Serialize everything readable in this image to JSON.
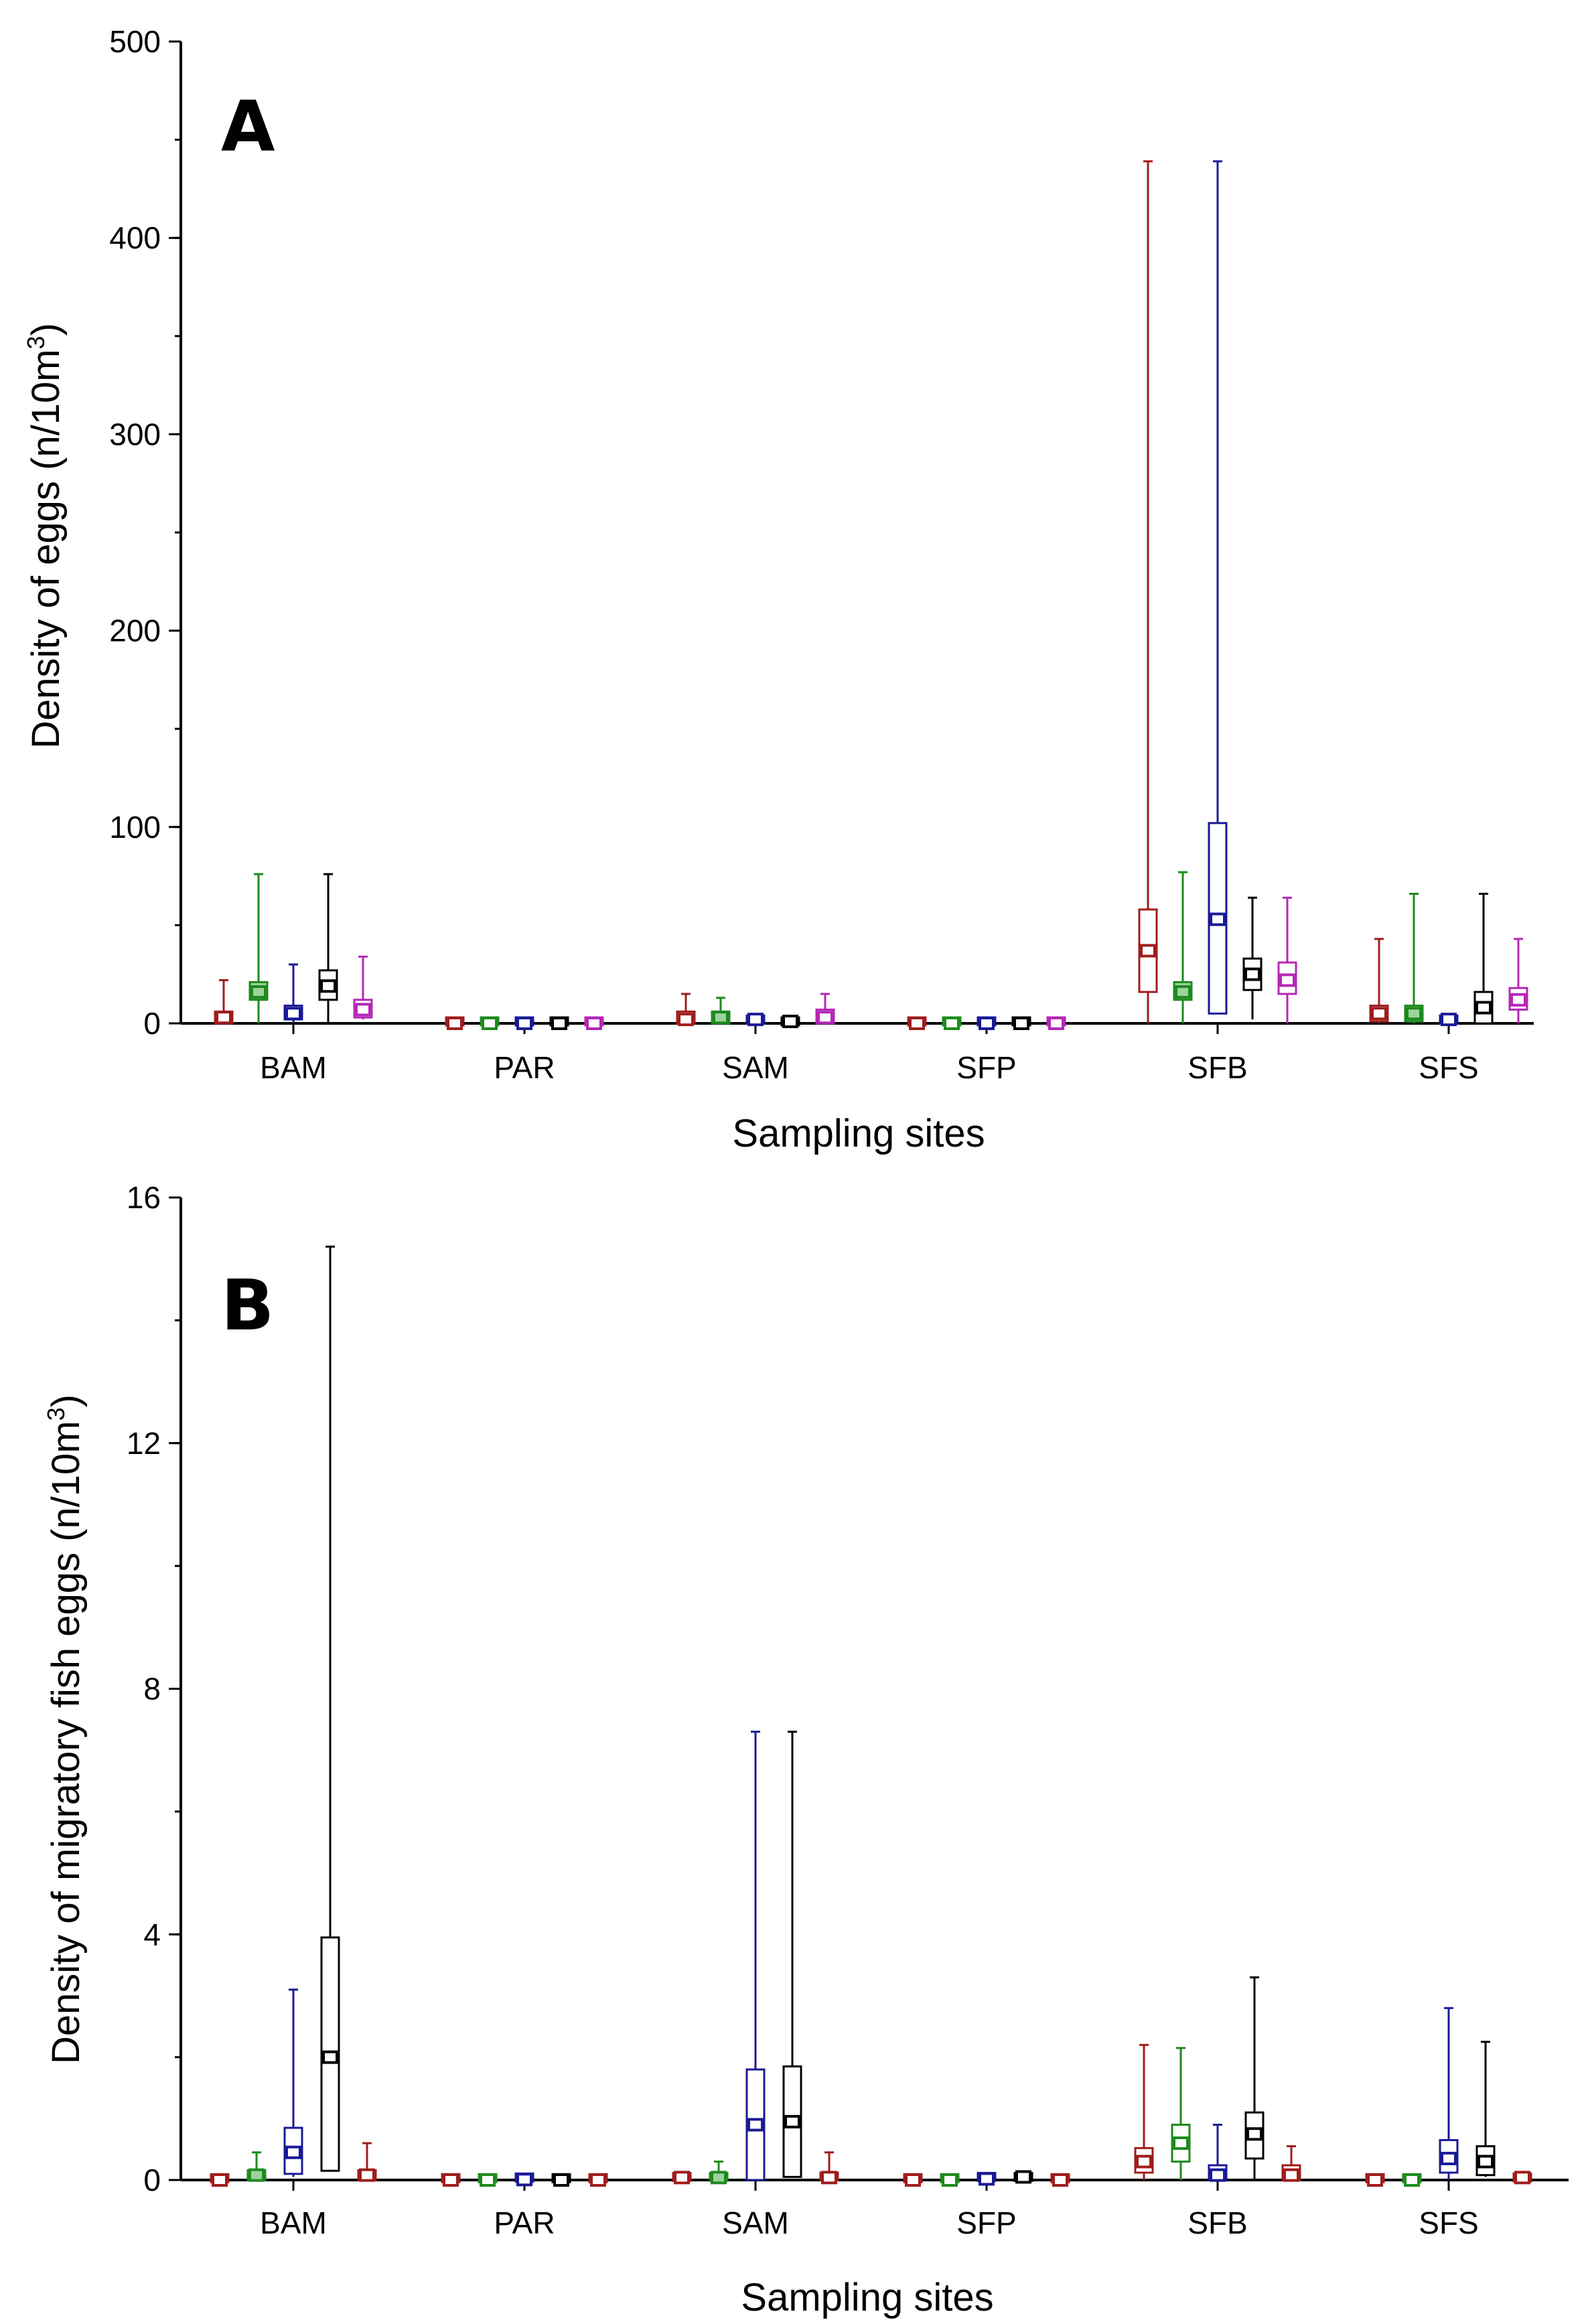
{
  "figure": {
    "panel_letters": [
      "A",
      "B"
    ]
  },
  "colors": {
    "red": "#a01c1c",
    "green": "#1e8a1e",
    "blue": "#1a1a96",
    "black": "#000000",
    "magenta": "#b528b5",
    "light_green_fill": "#9dd39d"
  },
  "chart_data": [
    {
      "type": "box",
      "panel": "A",
      "title": "",
      "xlabel": "Sampling sites",
      "ylabel_main": "Density of eggs (n/10m",
      "ylabel_sup": "3",
      "ylabel_end": ")",
      "ylim": [
        0,
        500
      ],
      "yticks": [
        0,
        100,
        200,
        300,
        400,
        500
      ],
      "minor_step": 50,
      "categories": [
        "BAM",
        "PAR",
        "SAM",
        "SFP",
        "SFB",
        "SFS"
      ],
      "series_colors": [
        "red",
        "green",
        "blue",
        "black",
        "magenta"
      ],
      "boxes": [
        [
          {
            "min": 0,
            "q1": 0,
            "med": 3,
            "q3": 6,
            "max": 22
          },
          {
            "min": 0,
            "q1": 12,
            "med": 16,
            "q3": 21,
            "max": 76,
            "fill": true
          },
          {
            "min": 0,
            "q1": 2,
            "med": 5,
            "q3": 9,
            "max": 30
          },
          {
            "min": 0,
            "q1": 12,
            "med": 19,
            "q3": 27,
            "max": 76
          },
          {
            "min": 2,
            "q1": 3,
            "med": 7,
            "q3": 12,
            "max": 34
          }
        ],
        [
          {
            "min": 0,
            "q1": 0,
            "med": 0,
            "q3": 2,
            "max": 2
          },
          {
            "min": 0,
            "q1": 0,
            "med": 0,
            "q3": 2,
            "max": 2
          },
          {
            "min": 0,
            "q1": 0,
            "med": 0,
            "q3": 2,
            "max": 2
          },
          {
            "min": 0,
            "q1": 0,
            "med": 0,
            "q3": 2,
            "max": 2
          },
          {
            "min": 0,
            "q1": 0,
            "med": 0,
            "q3": 2,
            "max": 2
          }
        ],
        [
          {
            "min": 0,
            "q1": 0,
            "med": 2,
            "q3": 6,
            "max": 15
          },
          {
            "min": 0,
            "q1": 0,
            "med": 3,
            "q3": 6,
            "max": 13,
            "fill": true
          },
          {
            "min": 0,
            "q1": 0,
            "med": 2,
            "q3": 4,
            "max": 4
          },
          {
            "min": 0,
            "q1": 0,
            "med": 1,
            "q3": 2,
            "max": 2
          },
          {
            "min": 0,
            "q1": 0,
            "med": 3,
            "q3": 7,
            "max": 15
          }
        ],
        [
          {
            "min": 0,
            "q1": 0,
            "med": 0,
            "q3": 2,
            "max": 2
          },
          {
            "min": 0,
            "q1": 0,
            "med": 0,
            "q3": 2,
            "max": 2
          },
          {
            "min": 0,
            "q1": 0,
            "med": 0,
            "q3": 2,
            "max": 2
          },
          {
            "min": 0,
            "q1": 0,
            "med": 0,
            "q3": 2,
            "max": 2
          },
          {
            "min": 0,
            "q1": 0,
            "med": 0,
            "q3": 2,
            "max": 2
          }
        ],
        [
          {
            "min": 0,
            "q1": 16,
            "med": 37,
            "q3": 58,
            "max": 439
          },
          {
            "min": 0,
            "q1": 12,
            "med": 16,
            "q3": 21,
            "max": 77,
            "fill": true
          },
          {
            "min": 5,
            "q1": 5,
            "med": 53,
            "q3": 102,
            "max": 439
          },
          {
            "min": 2,
            "q1": 17,
            "med": 25,
            "q3": 33,
            "max": 64
          },
          {
            "min": 0,
            "q1": 15,
            "med": 22,
            "q3": 31,
            "max": 64
          }
        ],
        [
          {
            "min": 0,
            "q1": 1,
            "med": 5,
            "q3": 9,
            "max": 43
          },
          {
            "min": 0,
            "q1": 1,
            "med": 5,
            "q3": 9,
            "max": 66,
            "fill": true
          },
          {
            "min": 0,
            "q1": 0,
            "med": 2,
            "q3": 4,
            "max": 4
          },
          {
            "min": 0,
            "q1": 0,
            "med": 8,
            "q3": 16,
            "max": 66
          },
          {
            "min": 0,
            "q1": 7,
            "med": 12,
            "q3": 18,
            "max": 43
          }
        ]
      ]
    },
    {
      "type": "box",
      "panel": "B",
      "title": "",
      "xlabel": "Sampling sites",
      "ylabel_main": "Density of migratory fish eggs (n/10m",
      "ylabel_sup": "3",
      "ylabel_end": ")",
      "ylim": [
        0,
        16
      ],
      "yticks": [
        0,
        4,
        8,
        12,
        16
      ],
      "minor_step": 2,
      "categories": [
        "BAM",
        "PAR",
        "SAM",
        "SFP",
        "SFB",
        "SFS"
      ],
      "series_colors": [
        "red",
        "green",
        "blue",
        "black",
        "red"
      ],
      "boxes": [
        [
          {
            "min": 0,
            "q1": 0,
            "med": 0,
            "q3": 0.06,
            "max": 0.06
          },
          {
            "min": 0,
            "q1": 0,
            "med": 0.08,
            "q3": 0.16,
            "max": 0.45,
            "fill": true
          },
          {
            "min": 0.05,
            "q1": 0.1,
            "med": 0.45,
            "q3": 0.85,
            "max": 3.1
          },
          {
            "min": 0.15,
            "q1": 0.15,
            "med": 2.0,
            "q3": 3.95,
            "max": 15.2
          },
          {
            "min": 0,
            "q1": 0,
            "med": 0.08,
            "q3": 0.16,
            "max": 0.6
          }
        ],
        [
          {
            "min": 0,
            "q1": 0,
            "med": 0,
            "q3": 0.06,
            "max": 0.06
          },
          {
            "min": 0,
            "q1": 0,
            "med": 0,
            "q3": 0.06,
            "max": 0.06
          },
          {
            "min": 0,
            "q1": 0,
            "med": 0,
            "q3": 0.08,
            "max": 0.08
          },
          {
            "min": 0,
            "q1": 0,
            "med": 0,
            "q3": 0.06,
            "max": 0.06
          },
          {
            "min": 0,
            "q1": 0,
            "med": 0,
            "q3": 0.06,
            "max": 0.06
          }
        ],
        [
          {
            "min": 0,
            "q1": 0,
            "med": 0.04,
            "q3": 0.1,
            "max": 0.1
          },
          {
            "min": 0,
            "q1": 0,
            "med": 0.04,
            "q3": 0.1,
            "max": 0.3,
            "fill": true
          },
          {
            "min": 0,
            "q1": 0,
            "med": 0.9,
            "q3": 1.8,
            "max": 7.3
          },
          {
            "min": 0.05,
            "q1": 0.05,
            "med": 0.95,
            "q3": 1.85,
            "max": 7.3
          },
          {
            "min": 0,
            "q1": 0,
            "med": 0.04,
            "q3": 0.12,
            "max": 0.45
          }
        ],
        [
          {
            "min": 0,
            "q1": 0,
            "med": 0,
            "q3": 0.06,
            "max": 0.06
          },
          {
            "min": 0,
            "q1": 0,
            "med": 0,
            "q3": 0.06,
            "max": 0.06
          },
          {
            "min": 0,
            "q1": 0,
            "med": 0,
            "q3": 0.1,
            "max": 0.1
          },
          {
            "min": 0,
            "q1": 0,
            "med": 0.05,
            "q3": 0.1,
            "max": 0.14
          },
          {
            "min": 0,
            "q1": 0,
            "med": 0,
            "q3": 0.06,
            "max": 0.06
          }
        ],
        [
          {
            "min": 0,
            "q1": 0.12,
            "med": 0.3,
            "q3": 0.52,
            "max": 2.2
          },
          {
            "min": 0,
            "q1": 0.3,
            "med": 0.6,
            "q3": 0.9,
            "max": 2.15
          },
          {
            "min": 0,
            "q1": 0,
            "med": 0.08,
            "q3": 0.24,
            "max": 0.9
          },
          {
            "min": 0,
            "q1": 0.35,
            "med": 0.75,
            "q3": 1.1,
            "max": 3.3
          },
          {
            "min": 0,
            "q1": 0,
            "med": 0.08,
            "q3": 0.24,
            "max": 0.55
          }
        ],
        [
          {
            "min": 0,
            "q1": 0,
            "med": 0,
            "q3": 0.06,
            "max": 0.06
          },
          {
            "min": 0,
            "q1": 0,
            "med": 0,
            "q3": 0.06,
            "max": 0.06
          },
          {
            "min": 0,
            "q1": 0.12,
            "med": 0.35,
            "q3": 0.65,
            "max": 2.8
          },
          {
            "min": 0.05,
            "q1": 0.08,
            "med": 0.3,
            "q3": 0.55,
            "max": 2.25
          },
          {
            "min": 0,
            "q1": 0,
            "med": 0.04,
            "q3": 0.08,
            "max": 0.08
          }
        ]
      ]
    }
  ]
}
